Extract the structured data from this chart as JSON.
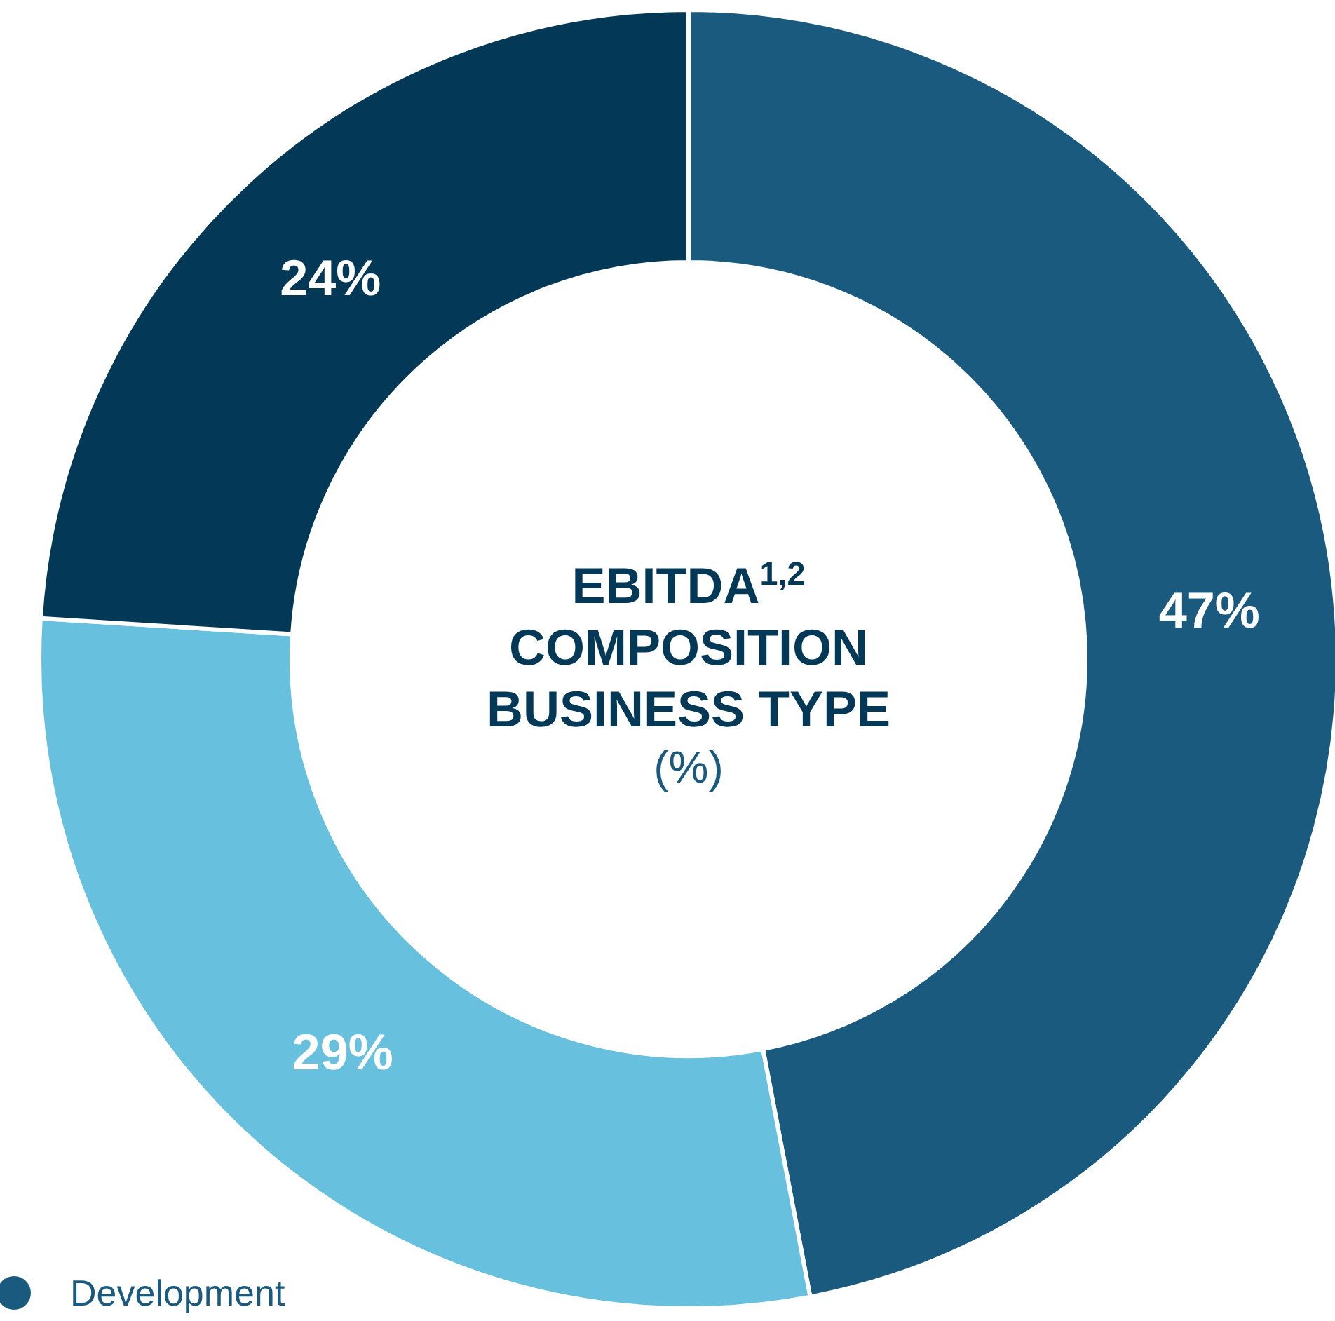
{
  "chart_data": {
    "type": "donut",
    "title": "EBITDA$^{1,2}$ COMPOSITION BUSINESS TYPE",
    "subtitle": "(%)",
    "categories": [
      "Development",
      null,
      null
    ],
    "values": [
      47,
      29,
      24
    ],
    "colors": [
      "#1b5a7f",
      "#66c0de",
      "#033856"
    ],
    "value_labels": [
      "47%",
      "29%",
      "24%"
    ],
    "legend": "bottom left"
  }
}
